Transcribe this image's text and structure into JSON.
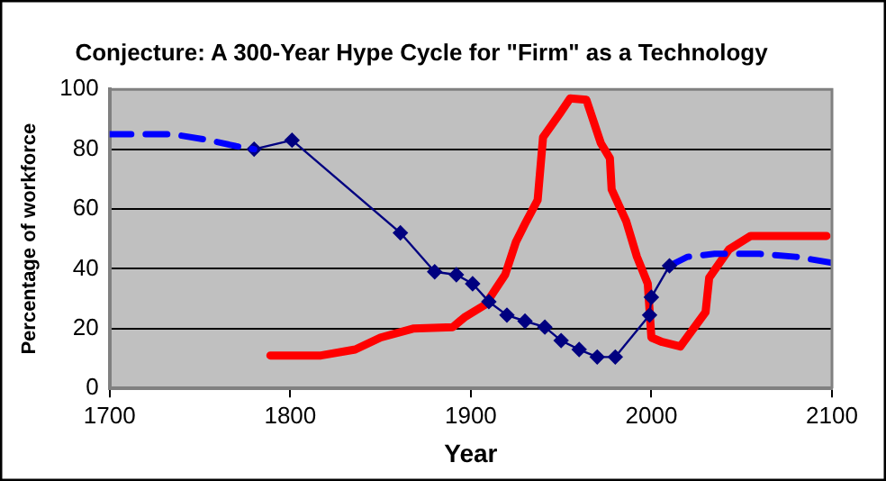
{
  "chart_data": {
    "type": "line",
    "title": "Conjecture: A 300-Year Hype Cycle for \"Firm\" as a Technology",
    "xlabel": "Year",
    "ylabel": "Percentage of workforce",
    "xlim": [
      1700,
      2100
    ],
    "xticks": [
      1700,
      1800,
      1900,
      2000,
      2100
    ],
    "ylim": [
      0,
      100
    ],
    "yticks": [
      0,
      20,
      40,
      60,
      80,
      100
    ],
    "grid": "y",
    "legend": false,
    "series": [
      {
        "color": "#0000ff",
        "line_style": "dashed",
        "marker": "none",
        "x": [
          1700,
          1735,
          1755,
          1770,
          1780
        ],
        "values": [
          85,
          85,
          83,
          81,
          80
        ]
      },
      {
        "color": "#000080",
        "line_style": "solid",
        "marker": "diamond",
        "x": [
          1780,
          1801,
          1861,
          1880,
          1892,
          1901,
          1910,
          1920,
          1930,
          1941,
          1950,
          1960,
          1970,
          1980,
          1999,
          2000,
          2010
        ],
        "values": [
          80,
          83,
          52,
          39,
          38,
          35,
          29,
          24.5,
          22.5,
          20.5,
          16,
          13,
          10.5,
          10.5,
          24.5,
          30.5,
          41
        ]
      },
      {
        "color": "#0000ff",
        "line_style": "dashed",
        "marker": "none",
        "x": [
          2010,
          2020,
          2035,
          2060,
          2080,
          2100
        ],
        "values": [
          41,
          44,
          45,
          45,
          44,
          42
        ]
      },
      {
        "color": "#ff0000",
        "line_style": "solid",
        "marker": "none",
        "x": [
          1789,
          1817,
          1836,
          1850,
          1868,
          1890,
          1897,
          1908,
          1919,
          1925,
          1930,
          1937,
          1940,
          1950,
          1955,
          1964,
          1972,
          1977,
          1978,
          1986,
          1992,
          1998,
          2000,
          2006,
          2016,
          2030,
          2032,
          2043,
          2055,
          2097
        ],
        "values": [
          11,
          11,
          13,
          17,
          20,
          20.5,
          24,
          28,
          38,
          49,
          55,
          63,
          84,
          92.5,
          97,
          96.5,
          82,
          77,
          66.5,
          56,
          44,
          35,
          17,
          15.5,
          14,
          25.5,
          37,
          46.5,
          51,
          51
        ]
      }
    ]
  }
}
